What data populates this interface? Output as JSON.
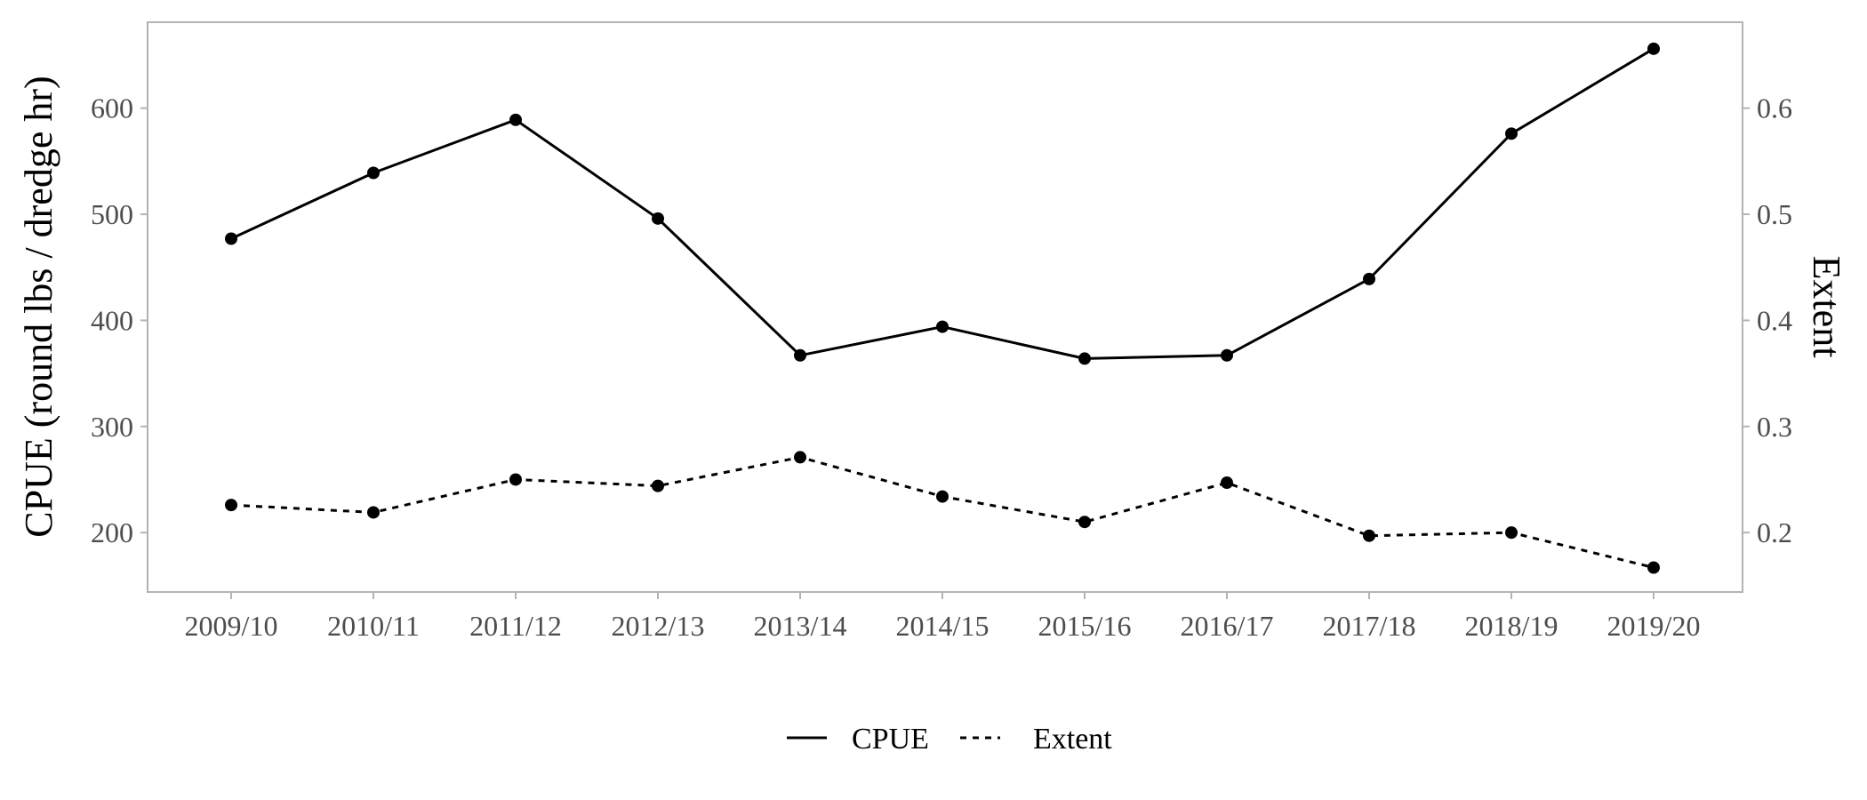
{
  "chart_data": {
    "type": "line",
    "categories": [
      "2009/10",
      "2010/11",
      "2011/12",
      "2012/13",
      "2013/14",
      "2014/15",
      "2015/16",
      "2016/17",
      "2017/18",
      "2018/19",
      "2019/20"
    ],
    "series": [
      {
        "name": "CPUE",
        "axis": "left",
        "line_style": "solid",
        "values": [
          477,
          539,
          589,
          496,
          367,
          394,
          364,
          367,
          439,
          576,
          656
        ]
      },
      {
        "name": "Extent",
        "axis": "right",
        "line_style": "dashed",
        "values": [
          0.226,
          0.219,
          0.25,
          0.244,
          0.271,
          0.234,
          0.21,
          0.247,
          0.197,
          0.2,
          0.167
        ]
      }
    ],
    "ylabel": "CPUE (round lbs / dredge hr)",
    "ylabel_right": "Extent",
    "xlabel": "",
    "ylim": [
      144,
      681
    ],
    "yticks": [
      200,
      300,
      400,
      500,
      600
    ],
    "ylim_right": [
      0.144,
      0.681
    ],
    "yticks_right": [
      "0.2",
      "0.3",
      "0.4",
      "0.5",
      "0.6"
    ],
    "grid": false,
    "legend_position": "bottom",
    "colors": {
      "line": "#000000",
      "frame": "#b3b3b3",
      "tick_text": "#4d4d4d"
    }
  }
}
